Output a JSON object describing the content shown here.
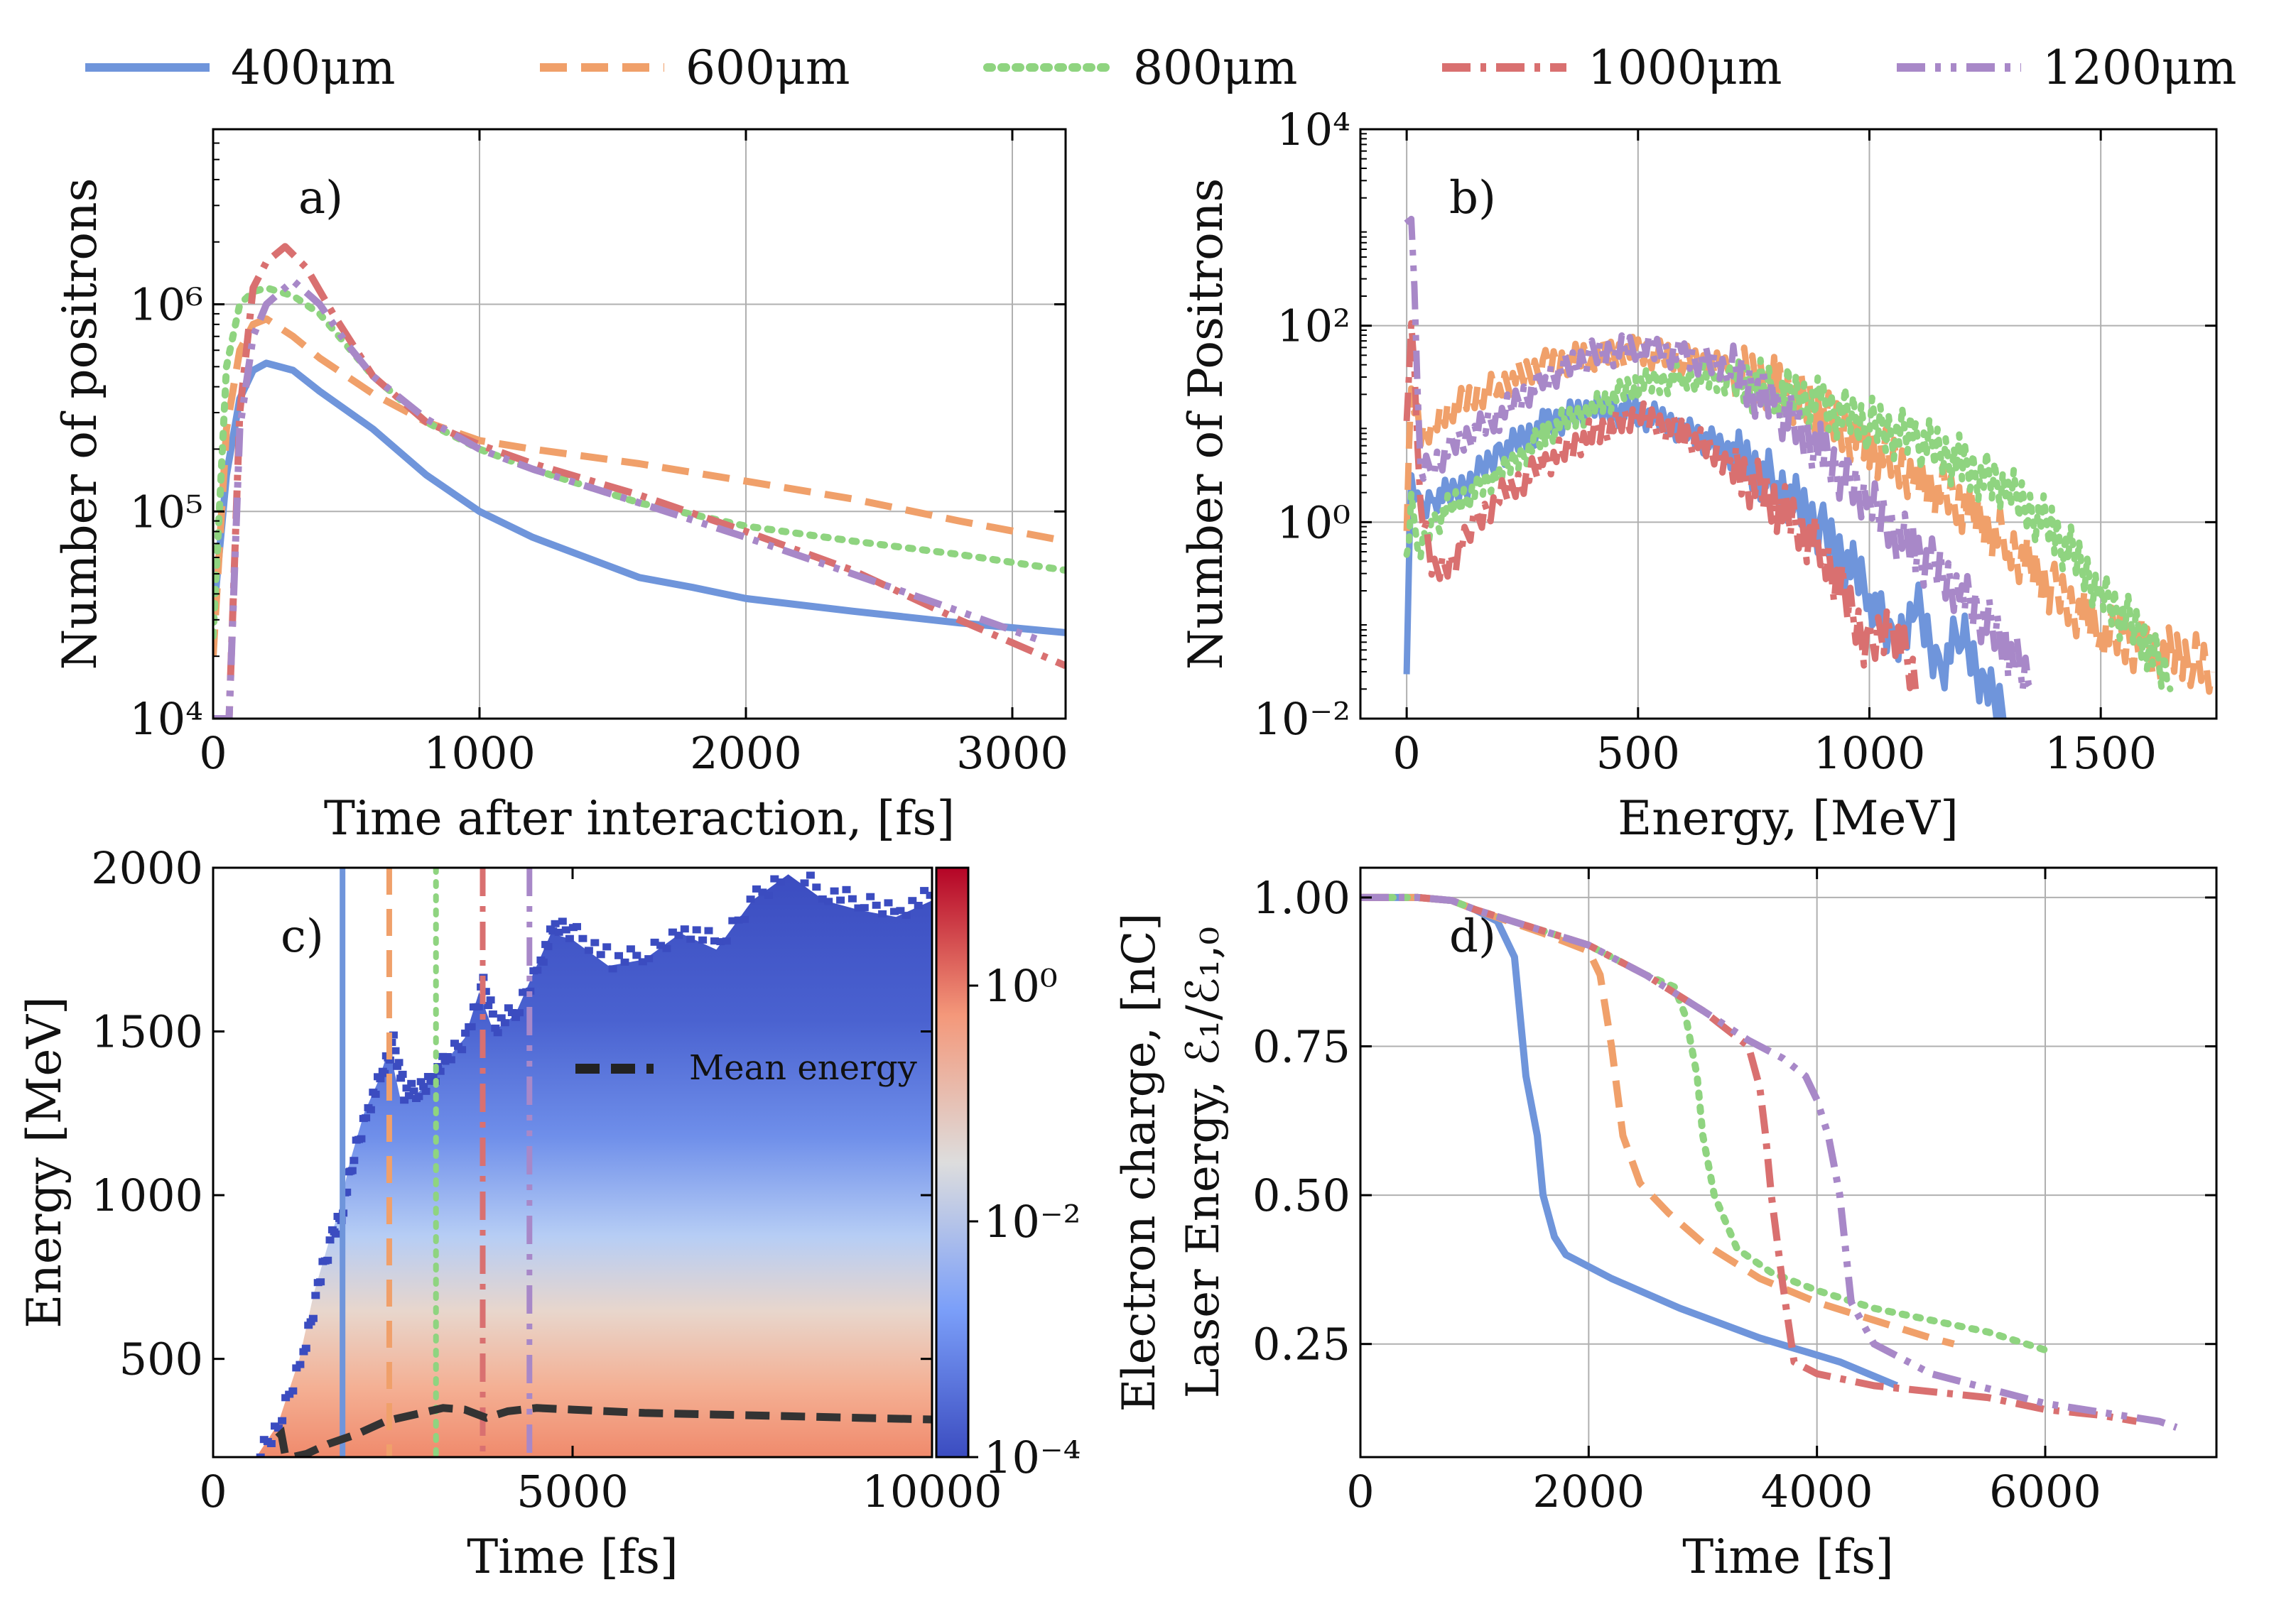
{
  "colors": {
    "s400": "#6f95db",
    "s600": "#f0a06a",
    "s800": "#8fd480",
    "s1000": "#d97070",
    "s1200": "#a888c8",
    "mean": "#333333",
    "grid": "#b0b0b0",
    "axis": "#000000"
  },
  "legend": {
    "items": [
      {
        "label": "400μm",
        "series": "400",
        "dash": "solid"
      },
      {
        "label": "600μm",
        "series": "600",
        "dash": "dashed"
      },
      {
        "label": "800μm",
        "series": "800",
        "dash": "dotted"
      },
      {
        "label": "1000μm",
        "series": "1000",
        "dash": "dashdot"
      },
      {
        "label": "1200μm",
        "series": "1200",
        "dash": "dashdotdot"
      }
    ]
  },
  "chart_data": [
    {
      "panel": "a",
      "type": "line",
      "annotation": "a)",
      "xlabel": "Time after interaction, [fs]",
      "ylabel": "Number of positrons",
      "xlim": [
        0,
        3200
      ],
      "ylim": [
        10000,
        7000000
      ],
      "yscale": "log",
      "xticks": [
        0,
        1000,
        2000,
        3000
      ],
      "xtick_labels": [
        "0",
        "1000",
        "2000",
        "3000"
      ],
      "yticks": [
        10000,
        100000,
        1000000
      ],
      "ytick_labels": [
        "10⁴",
        "10⁵",
        "10⁶"
      ],
      "grid": true,
      "series": [
        {
          "name": "400μm",
          "x": [
            0,
            50,
            100,
            150,
            200,
            300,
            400,
            600,
            800,
            1000,
            1200,
            1400,
            1600,
            1800,
            2000,
            2400,
            2800,
            3200
          ],
          "y": [
            30000,
            150000,
            350000,
            480000,
            520000,
            480000,
            380000,
            250000,
            150000,
            100000,
            75000,
            60000,
            48000,
            43000,
            38000,
            33000,
            29000,
            26000
          ]
        },
        {
          "name": "600μm",
          "x": [
            0,
            50,
            100,
            150,
            200,
            300,
            400,
            600,
            800,
            1000,
            1200,
            1600,
            2000,
            2400,
            2800,
            3200
          ],
          "y": [
            20000,
            250000,
            600000,
            800000,
            850000,
            700000,
            550000,
            370000,
            270000,
            220000,
            200000,
            170000,
            140000,
            115000,
            90000,
            72000
          ]
        },
        {
          "name": "800μm",
          "x": [
            0,
            50,
            100,
            150,
            200,
            300,
            400,
            600,
            800,
            1000,
            1200,
            1600,
            2000,
            2400,
            2800,
            3200
          ],
          "y": [
            25000,
            500000,
            1000000,
            1150000,
            1200000,
            1100000,
            900000,
            450000,
            270000,
            200000,
            160000,
            110000,
            85000,
            72000,
            62000,
            52000
          ]
        },
        {
          "name": "1000μm",
          "x": [
            0,
            60,
            100,
            150,
            200,
            270,
            350,
            450,
            600,
            800,
            1000,
            1200,
            1600,
            2000,
            2400,
            2800,
            3200
          ],
          "y": [
            10000,
            10000,
            300000,
            1200000,
            1600000,
            1900000,
            1500000,
            900000,
            450000,
            270000,
            210000,
            170000,
            120000,
            80000,
            52000,
            30000,
            18000
          ]
        },
        {
          "name": "1200μm",
          "x": [
            0,
            60,
            100,
            150,
            200,
            300,
            400,
            500,
            600,
            800,
            1000,
            1200,
            1600,
            2000,
            2400,
            2800,
            3100
          ],
          "y": [
            10000,
            10000,
            250000,
            700000,
            1000000,
            1300000,
            1000000,
            650000,
            450000,
            280000,
            200000,
            160000,
            110000,
            75000,
            50000,
            33000,
            24000
          ]
        }
      ]
    },
    {
      "panel": "b",
      "type": "line",
      "annotation": "b)",
      "xlabel": "Energy,  [MeV]",
      "ylabel": "Number of Positrons",
      "xlim": [
        -100,
        1750
      ],
      "ylim": [
        0.01,
        10000
      ],
      "yscale": "log",
      "xticks": [
        0,
        500,
        1000,
        1500
      ],
      "xtick_labels": [
        "0",
        "500",
        "1000",
        "1500"
      ],
      "yticks": [
        0.01,
        1,
        100,
        10000
      ],
      "ytick_labels": [
        "10⁻²",
        "10⁰",
        "10²",
        "10⁴"
      ],
      "grid": true,
      "series": [
        {
          "name": "400μm",
          "x": [
            0,
            10,
            30,
            60,
            100,
            150,
            200,
            300,
            400,
            500,
            600,
            700,
            800,
            900,
            1000,
            1050,
            1100,
            1150,
            1200,
            1250,
            1300
          ],
          "y": [
            0.04,
            3,
            1.2,
            1.8,
            2,
            3,
            5,
            10,
            14,
            13,
            9,
            5,
            2.5,
            0.8,
            0.2,
            0.05,
            0.15,
            0.03,
            0.08,
            0.02,
            0.01
          ]
        },
        {
          "name": "600μm",
          "x": [
            0,
            10,
            30,
            60,
            100,
            200,
            300,
            400,
            500,
            600,
            700,
            800,
            900,
            1000,
            1100,
            1200,
            1300,
            1400,
            1500,
            1600,
            1700,
            1740
          ],
          "y": [
            1,
            20,
            8,
            10,
            15,
            25,
            40,
            50,
            55,
            45,
            35,
            25,
            12,
            6,
            3,
            1.5,
            0.6,
            0.2,
            0.08,
            0.05,
            0.04,
            0.03
          ]
        },
        {
          "name": "800μm",
          "x": [
            0,
            10,
            30,
            60,
            100,
            200,
            300,
            400,
            500,
            600,
            700,
            800,
            900,
            1000,
            1100,
            1200,
            1300,
            1400,
            1500,
            1600,
            1650
          ],
          "y": [
            0.5,
            1.5,
            0.5,
            1,
            1.5,
            3,
            8,
            15,
            25,
            30,
            28,
            22,
            15,
            10,
            7,
            4,
            2,
            0.8,
            0.2,
            0.06,
            0.02
          ]
        },
        {
          "name": "1000μm",
          "x": [
            0,
            10,
            30,
            60,
            100,
            150,
            200,
            300,
            400,
            500,
            600,
            700,
            800,
            900,
            1000,
            1050,
            1100
          ],
          "y": [
            10,
            150,
            1.5,
            0.3,
            0.4,
            1,
            1.8,
            4,
            8,
            12,
            8,
            4,
            1.5,
            0.5,
            0.05,
            0.1,
            0.02
          ]
        },
        {
          "name": "1200μm",
          "x": [
            0,
            10,
            30,
            60,
            100,
            200,
            300,
            400,
            500,
            600,
            700,
            800,
            900,
            1000,
            1100,
            1200,
            1300,
            1350
          ],
          "y": [
            1000,
            1500,
            3,
            4,
            6,
            12,
            30,
            50,
            60,
            50,
            35,
            15,
            5,
            1.5,
            0.5,
            0.2,
            0.05,
            0.02
          ]
        }
      ]
    },
    {
      "panel": "c",
      "type": "heatmap",
      "annotation": "c)",
      "xlabel": "Time [fs]",
      "ylabel": "Energy [MeV]",
      "xlim": [
        0,
        10000
      ],
      "ylim": [
        200,
        2000
      ],
      "xticks": [
        0,
        5000,
        10000
      ],
      "xtick_labels": [
        "0",
        "5000",
        "10000"
      ],
      "yticks": [
        500,
        1000,
        1500,
        2000
      ],
      "ytick_labels": [
        "500",
        "1000",
        "1500",
        "2000"
      ],
      "colorbar": {
        "scale": "log",
        "range": [
          0.0001,
          10
        ],
        "ticks": [
          0.0001,
          0.01,
          1
        ],
        "tick_labels": [
          "10⁻⁴",
          "10⁻²",
          "10⁰"
        ],
        "colormap": "coolwarm"
      },
      "max_energy_envelope": {
        "x": [
          600,
          900,
          1200,
          1400,
          1600,
          1750,
          1900,
          2100,
          2300,
          2450,
          2600,
          2800,
          3000,
          3200,
          3500,
          3700,
          3900,
          4200,
          4500,
          4700,
          5000,
          5500,
          6000,
          6500,
          7000,
          7500,
          8000,
          8500,
          9000,
          9500,
          10000
        ],
        "y": [
          200,
          300,
          500,
          700,
          850,
          950,
          1100,
          1250,
          1350,
          1450,
          1300,
          1300,
          1350,
          1400,
          1480,
          1620,
          1500,
          1550,
          1700,
          1800,
          1780,
          1700,
          1720,
          1800,
          1750,
          1900,
          1980,
          1900,
          1870,
          1850,
          1900
        ]
      },
      "vertical_markers": [
        {
          "series": "400",
          "x": 1800
        },
        {
          "series": "600",
          "x": 2450
        },
        {
          "series": "800",
          "x": 3100
        },
        {
          "series": "1000",
          "x": 3750
        },
        {
          "series": "1200",
          "x": 4400
        }
      ],
      "series": [
        {
          "name": "Mean energy",
          "x": [
            900,
            950,
            1000,
            1100,
            1300,
            1600,
            2000,
            2400,
            2800,
            3200,
            3500,
            3800,
            4100,
            4500,
            5000,
            6000,
            7000,
            8000,
            9000,
            10000
          ],
          "y": [
            260,
            270,
            210,
            200,
            210,
            240,
            270,
            310,
            330,
            350,
            345,
            320,
            340,
            350,
            345,
            335,
            330,
            325,
            320,
            315
          ]
        }
      ]
    },
    {
      "panel": "d",
      "type": "line",
      "annotation": "d)",
      "xlabel": "Time [fs]",
      "ylabel_lines": [
        "Electron charge,  [nC]",
        "Laser Energy, ℰ₁/ℰ₁,₀"
      ],
      "xlim": [
        0,
        7500
      ],
      "ylim": [
        0.06,
        1.05
      ],
      "xticks": [
        0,
        2000,
        4000,
        6000
      ],
      "xtick_labels": [
        "0",
        "2000",
        "4000",
        "6000"
      ],
      "yticks": [
        0.25,
        0.5,
        0.75,
        1.0
      ],
      "ytick_labels": [
        "0.25",
        "0.50",
        "0.75",
        "1.00"
      ],
      "grid": true,
      "series": [
        {
          "name": "400μm",
          "x": [
            0,
            500,
            800,
            1000,
            1200,
            1350,
            1450,
            1550,
            1600,
            1700,
            1800,
            2200,
            2800,
            3500,
            4200,
            4700
          ],
          "y": [
            1.0,
            1.0,
            0.995,
            0.98,
            0.96,
            0.9,
            0.7,
            0.6,
            0.5,
            0.43,
            0.4,
            0.36,
            0.31,
            0.26,
            0.22,
            0.18
          ]
        },
        {
          "name": "600μm",
          "x": [
            0,
            500,
            800,
            1000,
            1300,
            1600,
            2000,
            2100,
            2200,
            2300,
            2450,
            2700,
            3000,
            3500,
            4000,
            4500,
            5000,
            5200
          ],
          "y": [
            1.0,
            1.0,
            0.995,
            0.98,
            0.96,
            0.94,
            0.91,
            0.87,
            0.75,
            0.6,
            0.52,
            0.47,
            0.42,
            0.36,
            0.32,
            0.29,
            0.26,
            0.25
          ]
        },
        {
          "name": "800μm",
          "x": [
            0,
            500,
            800,
            1000,
            1500,
            2000,
            2500,
            2750,
            2850,
            2950,
            3000,
            3100,
            3300,
            3600,
            4000,
            4500,
            5000,
            5500,
            6000
          ],
          "y": [
            1.0,
            1.0,
            0.995,
            0.98,
            0.95,
            0.92,
            0.87,
            0.85,
            0.8,
            0.7,
            0.6,
            0.5,
            0.41,
            0.37,
            0.34,
            0.31,
            0.29,
            0.27,
            0.24
          ]
        },
        {
          "name": "1000μm",
          "x": [
            0,
            500,
            800,
            1000,
            1500,
            2000,
            2500,
            3000,
            3400,
            3500,
            3550,
            3600,
            3700,
            3800,
            4000,
            4500,
            5000,
            5500,
            6000,
            6500,
            6800
          ],
          "y": [
            1.0,
            1.0,
            0.995,
            0.98,
            0.95,
            0.92,
            0.87,
            0.81,
            0.75,
            0.68,
            0.6,
            0.5,
            0.35,
            0.22,
            0.2,
            0.18,
            0.17,
            0.16,
            0.14,
            0.13,
            0.12
          ]
        },
        {
          "name": "1200μm",
          "x": [
            0,
            500,
            800,
            1000,
            1500,
            2000,
            2500,
            3000,
            3400,
            3700,
            3900,
            4000,
            4100,
            4200,
            4300,
            4500,
            5000,
            6000,
            7000,
            7150
          ],
          "y": [
            1.0,
            1.0,
            0.995,
            0.98,
            0.95,
            0.92,
            0.87,
            0.81,
            0.76,
            0.73,
            0.7,
            0.66,
            0.6,
            0.5,
            0.32,
            0.25,
            0.2,
            0.15,
            0.12,
            0.11
          ]
        }
      ]
    }
  ]
}
